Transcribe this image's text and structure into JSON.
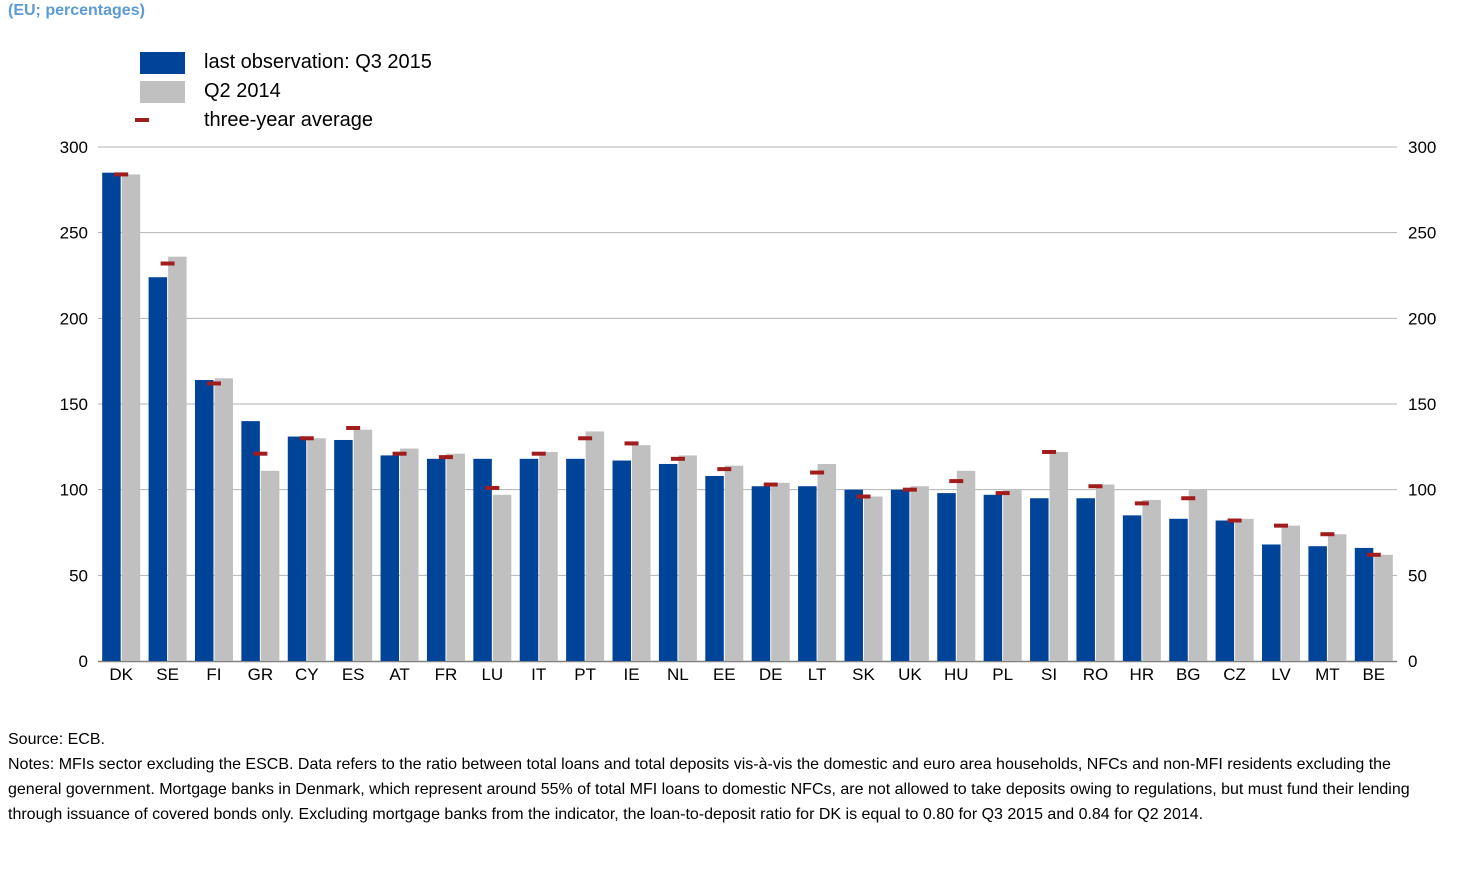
{
  "subtitle": "(EU; percentages)",
  "legend": {
    "q3": "last observation: Q3 2015",
    "q2": "Q2 2014",
    "avg": "three-year average"
  },
  "colors": {
    "q3": "#00449a",
    "q2": "#c0c0c0",
    "avg": "#a11d1d",
    "grid": "#b3b3b3",
    "axis": "#808080"
  },
  "chart_data": {
    "type": "bar",
    "title": "",
    "xlabel": "",
    "ylabel": "",
    "ylim": [
      0,
      300
    ],
    "yticks": [
      0,
      50,
      100,
      150,
      200,
      250,
      300
    ],
    "grid": true,
    "legend_position": "top-left",
    "categories": [
      "DK",
      "SE",
      "FI",
      "GR",
      "CY",
      "ES",
      "AT",
      "FR",
      "LU",
      "IT",
      "PT",
      "IE",
      "NL",
      "EE",
      "DE",
      "LT",
      "SK",
      "UK",
      "HU",
      "PL",
      "SI",
      "RO",
      "HR",
      "BG",
      "CZ",
      "LV",
      "MT",
      "BE"
    ],
    "series": [
      {
        "name": "last observation: Q3 2015",
        "values": [
          285,
          224,
          164,
          140,
          131,
          129,
          120,
          118,
          118,
          118,
          118,
          117,
          115,
          108,
          102,
          102,
          100,
          100,
          98,
          97,
          95,
          95,
          85,
          83,
          82,
          68,
          67,
          66
        ]
      },
      {
        "name": "Q2 2014",
        "values": [
          284,
          236,
          165,
          111,
          130,
          135,
          124,
          121,
          97,
          122,
          134,
          126,
          120,
          114,
          104,
          115,
          96,
          102,
          111,
          100,
          122,
          103,
          94,
          100,
          83,
          79,
          74,
          62
        ]
      },
      {
        "name": "three-year average",
        "values": [
          284,
          232,
          162,
          121,
          130,
          136,
          121,
          119,
          101,
          121,
          130,
          127,
          118,
          112,
          103,
          110,
          96,
          100,
          105,
          98,
          122,
          102,
          92,
          95,
          82,
          79,
          74,
          62
        ]
      }
    ]
  },
  "source": "Source: ECB.",
  "notes": "Notes: MFIs sector excluding the ESCB. Data refers to the ratio between total loans and total deposits vis-à-vis the domestic and euro area households, NFCs and non-MFI residents excluding the general government. Mortgage banks in Denmark, which represent around 55% of total MFI loans to domestic NFCs, are not allowed to take deposits owing to regulations, but must fund their lending through issuance of covered bonds only. Excluding mortgage banks from the indicator, the loan-to-deposit ratio for DK is equal to 0.80 for Q3 2015 and 0.84 for Q2 2014."
}
